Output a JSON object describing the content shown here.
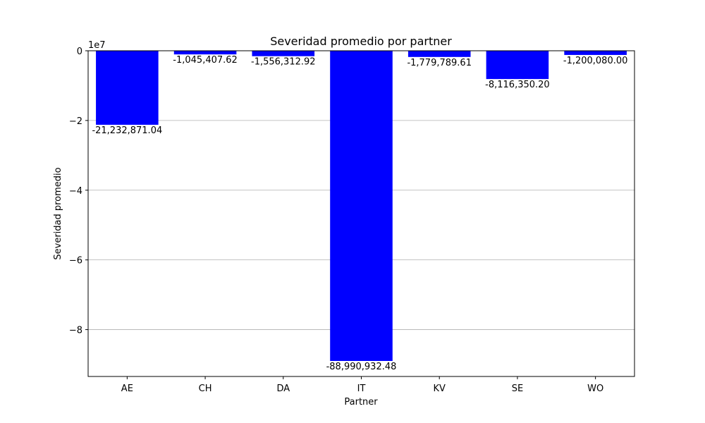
{
  "chart_data": {
    "type": "bar",
    "title": "Severidad promedio por partner",
    "xlabel": "Partner",
    "ylabel": "Severidad promedio",
    "categories": [
      "AE",
      "CH",
      "DA",
      "IT",
      "KV",
      "SE",
      "WO"
    ],
    "values": [
      -21232871.04,
      -1045407.62,
      -1556312.92,
      -88990932.48,
      -1779789.61,
      -8116350.2,
      -1200080.0
    ],
    "data_labels": [
      "-21,232,871.04",
      "-1,045,407.62",
      "-1,556,312.92",
      "-88,990,932.48",
      "-1,779,789.61",
      "-8,116,350.20",
      "-1,200,080.00"
    ],
    "ylim": [
      -93440000,
      0
    ],
    "y_ticks": [
      0,
      -20000000,
      -40000000,
      -60000000,
      -80000000
    ],
    "y_tick_labels": [
      "0",
      "−2",
      "−4",
      "−6",
      "−8"
    ],
    "y_offset_label": "1e7",
    "grid": "y",
    "bar_color": "#0000ff",
    "grid_color": "#b0b0b0"
  }
}
